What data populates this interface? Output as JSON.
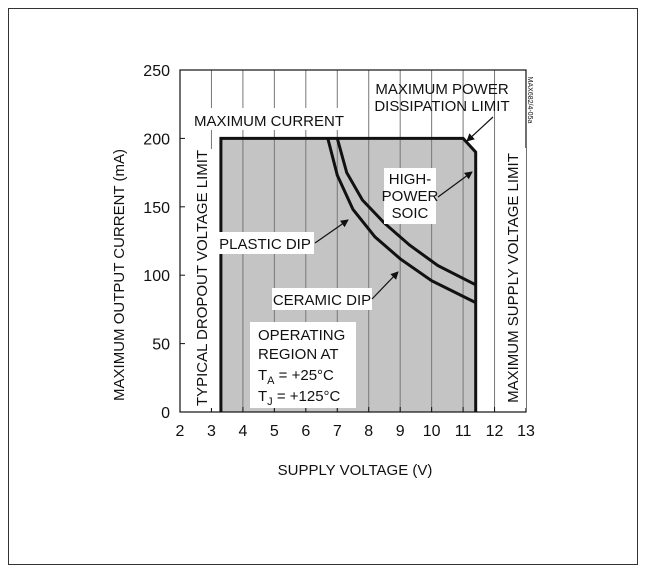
{
  "chart_data": {
    "type": "area",
    "title": "",
    "xlabel": "SUPPLY VOLTAGE (V)",
    "ylabel": "MAXIMUM OUTPUT CURRENT (mA)",
    "xlim": [
      2,
      13
    ],
    "ylim": [
      0,
      250
    ],
    "x_ticks": [
      2,
      3,
      4,
      5,
      6,
      7,
      8,
      9,
      10,
      11,
      12,
      13
    ],
    "y_ticks": [
      0,
      50,
      100,
      150,
      200,
      250
    ],
    "grid": "vertical",
    "watermark": "MAX682/4-05a",
    "series": [
      {
        "name": "OPERATING REGION",
        "points": [
          [
            3.3,
            0
          ],
          [
            3.3,
            200
          ],
          [
            11.0,
            200
          ],
          [
            11.4,
            190
          ],
          [
            11.4,
            0
          ]
        ]
      },
      {
        "name": "PLASTIC DIP",
        "points": [
          [
            7.0,
            200
          ],
          [
            7.3,
            175
          ],
          [
            7.8,
            155
          ],
          [
            8.5,
            138
          ],
          [
            9.3,
            122
          ],
          [
            10.2,
            107
          ],
          [
            11.4,
            93
          ]
        ]
      },
      {
        "name": "CERAMIC DIP",
        "points": [
          [
            6.7,
            200
          ],
          [
            7.0,
            173
          ],
          [
            7.5,
            148
          ],
          [
            8.2,
            128
          ],
          [
            9.0,
            112
          ],
          [
            10.0,
            96
          ],
          [
            11.4,
            80
          ]
        ]
      }
    ],
    "annotations": {
      "max_current": "MAXIMUM CURRENT",
      "max_power_1": "MAXIMUM POWER",
      "max_power_2": "DISSIPATION LIMIT",
      "high_power_1": "HIGH-",
      "high_power_2": "POWER",
      "high_power_3": "SOIC",
      "plastic_dip": "PLASTIC DIP",
      "ceramic_dip": "CERAMIC DIP",
      "operating_1": "OPERATING",
      "operating_2": "REGION AT",
      "ta_main": "T",
      "ta_sub": "A",
      "ta_rest": " = +25°C",
      "tj_main": "T",
      "tj_sub": "J",
      "tj_rest": " = +125°C",
      "dropout_limit": "TYPICAL DROPOUT VOLTAGE LIMIT",
      "supply_limit": "MAXIMUM SUPPLY VOLTAGE LIMIT"
    }
  }
}
